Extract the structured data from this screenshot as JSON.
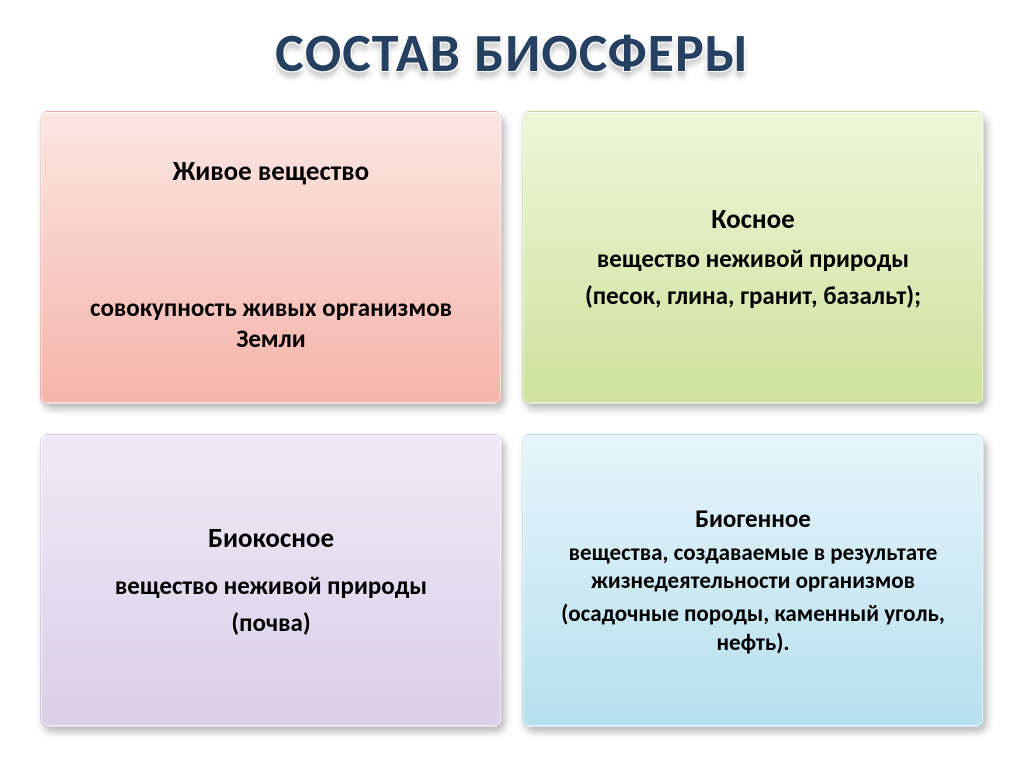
{
  "title": "СОСТАВ БИОСФЕРЫ",
  "title_color": "#254061",
  "title_fontsize": 54,
  "background_color": "#ffffff",
  "cards": {
    "living": {
      "heading": "Живое вещество",
      "sub": "совокупность живых организмов Земли",
      "gradient_from": "#fbe6e2",
      "gradient_to": "#f5b4ab"
    },
    "inert": {
      "heading": "Косное",
      "sub": "вещество неживой природы",
      "detail": "(песок, глина, гранит, базальт);",
      "gradient_from": "#eef6d8",
      "gradient_to": "#cde29c"
    },
    "bioinert": {
      "heading": "Биокосное",
      "sub": "вещество неживой природы",
      "detail": "(почва)",
      "gradient_from": "#efeaf5",
      "gradient_to": "#d9cfe8"
    },
    "biogenic": {
      "heading": "Биогенное",
      "sub": "вещества, создаваемые в результате жизнедеятельности организмов",
      "detail": "(осадочные породы, каменный уголь, нефть).",
      "gradient_from": "#e6f4fa",
      "gradient_to": "#b6e0ee"
    }
  },
  "typography": {
    "font_family": "Calibri, Arial, sans-serif",
    "heading_fontsize": 27,
    "body_fontsize": 25,
    "font_weight": 700,
    "text_color": "#000000"
  },
  "layout": {
    "type": "infographic",
    "columns": 2,
    "rows": 2,
    "card_border_radius": 8,
    "card_shadow": "3px 5px 8px rgba(0,0,0,0.28)"
  }
}
